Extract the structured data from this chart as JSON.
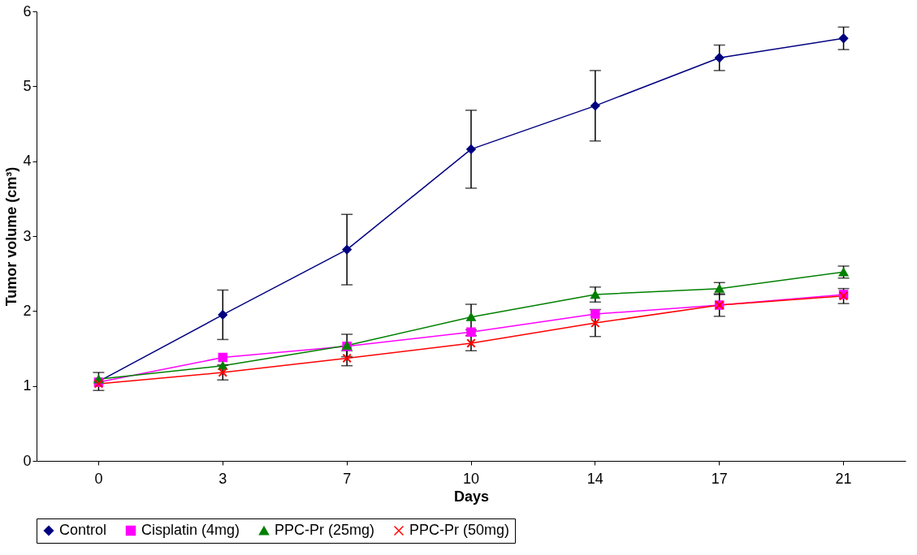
{
  "chart_data": {
    "type": "line",
    "xlabel": "Days",
    "ylabel": "Tumor volume (cm³)",
    "categories": [
      "0",
      "3",
      "7",
      "10",
      "14",
      "17",
      "21"
    ],
    "ylim": [
      0,
      6
    ],
    "yticks": [
      0,
      1,
      2,
      3,
      4,
      5,
      6
    ],
    "grid": false,
    "legend": "bottom",
    "line_style": "solid",
    "series": [
      {
        "name": "Control",
        "color": "#000080",
        "marker": "diamond",
        "values": [
          1.06,
          1.95,
          2.82,
          4.16,
          4.74,
          5.38,
          5.64
        ],
        "errors": [
          0.12,
          0.33,
          0.47,
          0.52,
          0.47,
          0.17,
          0.15
        ]
      },
      {
        "name": "Cisplatin (4mg)",
        "color": "#ff00ff",
        "marker": "square",
        "values": [
          1.05,
          1.38,
          1.53,
          1.72,
          1.96,
          2.08,
          2.22
        ]
      },
      {
        "name": "PPC-Pr (25mg)",
        "color": "#008000",
        "marker": "triangle",
        "values": [
          1.09,
          1.27,
          1.54,
          1.92,
          2.22,
          2.3,
          2.52
        ],
        "errors": [
          null,
          null,
          0.15,
          0.17,
          0.1,
          0.08,
          0.08
        ]
      },
      {
        "name": "PPC-Pr (50mg)",
        "color": "#ff0000",
        "marker": "cross",
        "values": [
          1.03,
          1.18,
          1.37,
          1.57,
          1.84,
          2.08,
          2.2
        ],
        "errors": [
          null,
          0.1,
          0.1,
          0.1,
          0.18,
          0.15,
          0.1
        ]
      }
    ]
  }
}
